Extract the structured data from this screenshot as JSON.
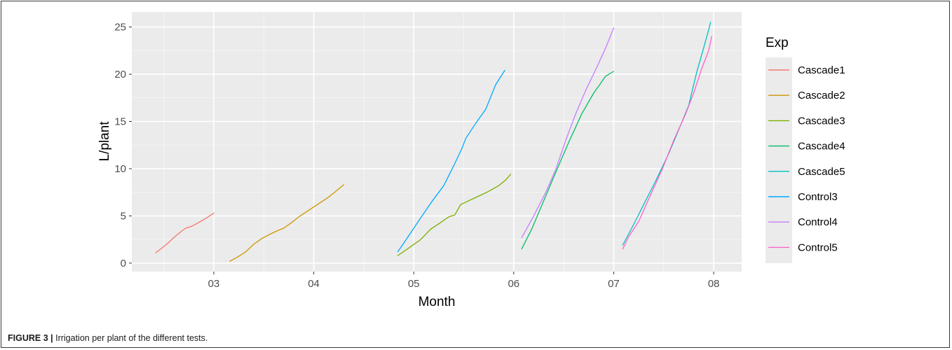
{
  "caption": {
    "label": "FIGURE 3 |",
    "text": "Irrigation per plant of the different tests."
  },
  "chart_data": {
    "type": "line",
    "xlabel": "Month",
    "ylabel": "L/plant",
    "x_tick_labels": [
      "03",
      "04",
      "05",
      "06",
      "07",
      "08"
    ],
    "x_ticks": [
      3,
      4,
      5,
      6,
      7,
      8
    ],
    "y_ticks": [
      0,
      5,
      10,
      15,
      20,
      25
    ],
    "xlim": [
      2.18,
      8.28
    ],
    "ylim": [
      -0.9,
      26.6
    ],
    "grid": true,
    "legend": {
      "title": "Exp",
      "position": "right"
    },
    "series": [
      {
        "name": "Cascade1",
        "color": "#F8766D",
        "points": [
          [
            2.42,
            1.1
          ],
          [
            2.53,
            2.0
          ],
          [
            2.6,
            2.7
          ],
          [
            2.68,
            3.4
          ],
          [
            2.72,
            3.7
          ],
          [
            2.78,
            3.9
          ],
          [
            2.85,
            4.3
          ],
          [
            2.93,
            4.8
          ],
          [
            3.0,
            5.3
          ]
        ]
      },
      {
        "name": "Cascade2",
        "color": "#CD9600",
        "points": [
          [
            3.16,
            0.2
          ],
          [
            3.23,
            0.6
          ],
          [
            3.32,
            1.2
          ],
          [
            3.4,
            2.0
          ],
          [
            3.48,
            2.6
          ],
          [
            3.57,
            3.1
          ],
          [
            3.63,
            3.4
          ],
          [
            3.7,
            3.7
          ],
          [
            3.78,
            4.3
          ],
          [
            3.85,
            4.9
          ],
          [
            3.95,
            5.6
          ],
          [
            4.05,
            6.3
          ],
          [
            4.15,
            7.0
          ],
          [
            4.22,
            7.6
          ],
          [
            4.3,
            8.3
          ]
        ]
      },
      {
        "name": "Cascade3",
        "color": "#7CAE00",
        "points": [
          [
            4.84,
            0.8
          ],
          [
            4.95,
            1.6
          ],
          [
            5.07,
            2.5
          ],
          [
            5.17,
            3.6
          ],
          [
            5.27,
            4.3
          ],
          [
            5.35,
            4.9
          ],
          [
            5.41,
            5.1
          ],
          [
            5.47,
            6.2
          ],
          [
            5.55,
            6.6
          ],
          [
            5.65,
            7.1
          ],
          [
            5.75,
            7.6
          ],
          [
            5.85,
            8.2
          ],
          [
            5.92,
            8.8
          ],
          [
            5.97,
            9.4
          ]
        ]
      },
      {
        "name": "Cascade4",
        "color": "#00BE67",
        "points": [
          [
            6.08,
            1.5
          ],
          [
            6.18,
            3.6
          ],
          [
            6.3,
            6.6
          ],
          [
            6.42,
            9.6
          ],
          [
            6.55,
            12.8
          ],
          [
            6.68,
            15.8
          ],
          [
            6.8,
            18.0
          ],
          [
            6.92,
            19.8
          ],
          [
            7.0,
            20.3
          ]
        ]
      },
      {
        "name": "Cascade5",
        "color": "#00BFC4",
        "points": [
          [
            7.09,
            1.9
          ],
          [
            7.2,
            4.1
          ],
          [
            7.3,
            6.2
          ],
          [
            7.42,
            8.7
          ],
          [
            7.55,
            11.6
          ],
          [
            7.65,
            14.1
          ],
          [
            7.75,
            16.7
          ],
          [
            7.83,
            20.2
          ],
          [
            7.9,
            22.8
          ],
          [
            7.97,
            25.5
          ]
        ]
      },
      {
        "name": "Control3",
        "color": "#00A9FF",
        "points": [
          [
            4.84,
            1.2
          ],
          [
            4.95,
            2.9
          ],
          [
            5.07,
            4.8
          ],
          [
            5.18,
            6.5
          ],
          [
            5.3,
            8.2
          ],
          [
            5.4,
            10.3
          ],
          [
            5.48,
            12.1
          ],
          [
            5.52,
            13.2
          ],
          [
            5.62,
            14.8
          ],
          [
            5.72,
            16.3
          ],
          [
            5.82,
            18.9
          ],
          [
            5.91,
            20.4
          ]
        ]
      },
      {
        "name": "Control4",
        "color": "#C77CFF",
        "points": [
          [
            6.08,
            2.7
          ],
          [
            6.2,
            5.0
          ],
          [
            6.32,
            7.5
          ],
          [
            6.42,
            9.9
          ],
          [
            6.52,
            13.0
          ],
          [
            6.62,
            15.8
          ],
          [
            6.72,
            18.3
          ],
          [
            6.82,
            20.5
          ],
          [
            6.92,
            22.8
          ],
          [
            7.0,
            24.9
          ]
        ]
      },
      {
        "name": "Control5",
        "color": "#FF61CC",
        "points": [
          [
            7.09,
            1.5
          ],
          [
            7.15,
            2.8
          ],
          [
            7.25,
            4.4
          ],
          [
            7.35,
            6.8
          ],
          [
            7.48,
            9.8
          ],
          [
            7.6,
            13.0
          ],
          [
            7.72,
            15.8
          ],
          [
            7.8,
            18.0
          ],
          [
            7.88,
            20.6
          ],
          [
            7.95,
            22.5
          ],
          [
            7.98,
            24.0
          ]
        ]
      }
    ]
  }
}
